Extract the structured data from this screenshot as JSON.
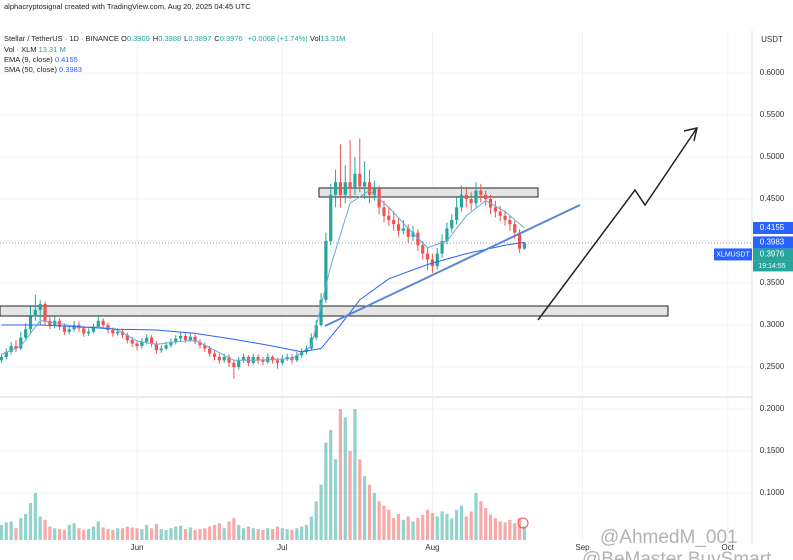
{
  "header": {
    "attribution": "alphacryptosignal created with TradingView.com, Aug 20, 2025 04:45 UTC",
    "symbol": "Stellar / TetherUS · 1D · BINANCE",
    "ohlc": [
      [
        "O",
        "0.3909"
      ],
      [
        "H",
        "0.3988"
      ],
      [
        "L",
        "0.3897"
      ],
      [
        "C",
        "0.3976"
      ]
    ],
    "change": "+0.0068 (+1.74%)",
    "vol_label": "Vol",
    "vol_value": "13.31M",
    "indicators": [
      {
        "name": "Vol · XLM",
        "value": "13.31 M"
      },
      {
        "name": "EMA (9, close)",
        "value": "0.4155"
      },
      {
        "name": "SMA (50, close)",
        "value": "0.3983"
      }
    ]
  },
  "axis_unit": "USDT",
  "price_tags": [
    {
      "value": 0.4155,
      "color": "#2962ff"
    },
    {
      "value": 0.3983,
      "color": "#2962ff"
    },
    {
      "value": 0.3976,
      "color": "#26a69a",
      "symbol": "XLMUSDT",
      "countdown": "19:14:55"
    }
  ],
  "watermarks": [
    "@AhmedM_001",
    "@BeMaster BuySmart"
  ],
  "chart_data": {
    "type": "candlestick",
    "up_color": "#26a69a",
    "down_color": "#ef5350",
    "xlim": [
      -0.3,
      155
    ],
    "ylim": [
      0.2167,
      0.6452
    ],
    "vol_ylim": [
      0.044,
      0.2107
    ],
    "xticks": [
      {
        "value": 28,
        "label": "Jun"
      },
      {
        "value": 58,
        "label": "Jul"
      },
      {
        "value": 89,
        "label": "Aug"
      },
      {
        "value": 120,
        "label": "Sep"
      },
      {
        "value": 150,
        "label": "Oct"
      }
    ],
    "yticks": [
      {
        "value": 0.25,
        "label": "0.2500"
      },
      {
        "value": 0.3,
        "label": "0.3000"
      },
      {
        "value": 0.35,
        "label": "0.3500"
      },
      {
        "value": 0.4,
        "label": "0.4000"
      },
      {
        "value": 0.45,
        "label": "0.4500"
      },
      {
        "value": 0.5,
        "label": "0.5000"
      },
      {
        "value": 0.55,
        "label": "0.5500"
      },
      {
        "value": 0.6,
        "label": "0.6000"
      }
    ],
    "vol_yticks": [
      {
        "value": 0.1,
        "label": "0.1000"
      },
      {
        "value": 0.15,
        "label": "0.1500"
      },
      {
        "value": 0.2,
        "label": "0.2000"
      }
    ],
    "grid": true,
    "candles": {
      "x": [
        0,
        1,
        2,
        3,
        4,
        5,
        6,
        7,
        8,
        9,
        10,
        11,
        12,
        13,
        14,
        15,
        16,
        17,
        18,
        19,
        20,
        21,
        22,
        23,
        24,
        25,
        26,
        27,
        28,
        29,
        30,
        31,
        32,
        33,
        34,
        35,
        36,
        37,
        38,
        39,
        40,
        41,
        42,
        43,
        44,
        45,
        46,
        47,
        48,
        49,
        50,
        51,
        52,
        53,
        54,
        55,
        56,
        57,
        58,
        59,
        60,
        61,
        62,
        63,
        64,
        65,
        66,
        67,
        68,
        69,
        70,
        71,
        72,
        73,
        74,
        75,
        76,
        77,
        78,
        79,
        80,
        81,
        82,
        83,
        84,
        85,
        86,
        87,
        88,
        89,
        90,
        91,
        92,
        93,
        94,
        95,
        96,
        97,
        98,
        99,
        100,
        101,
        102,
        103,
        104,
        105,
        106,
        107,
        108
      ],
      "ohlc": [
        [
          0.258,
          0.266,
          0.255,
          0.262
        ],
        [
          0.262,
          0.272,
          0.259,
          0.268
        ],
        [
          0.268,
          0.28,
          0.265,
          0.275
        ],
        [
          0.275,
          0.282,
          0.268,
          0.272
        ],
        [
          0.272,
          0.292,
          0.27,
          0.285
        ],
        [
          0.285,
          0.302,
          0.282,
          0.295
        ],
        [
          0.295,
          0.322,
          0.29,
          0.31
        ],
        [
          0.31,
          0.336,
          0.305,
          0.318
        ],
        [
          0.318,
          0.33,
          0.3,
          0.325
        ],
        [
          0.325,
          0.328,
          0.3,
          0.305
        ],
        [
          0.305,
          0.312,
          0.295,
          0.3
        ],
        [
          0.3,
          0.31,
          0.296,
          0.305
        ],
        [
          0.305,
          0.308,
          0.294,
          0.298
        ],
        [
          0.298,
          0.302,
          0.288,
          0.292
        ],
        [
          0.292,
          0.3,
          0.289,
          0.295
        ],
        [
          0.295,
          0.305,
          0.292,
          0.3
        ],
        [
          0.3,
          0.304,
          0.292,
          0.296
        ],
        [
          0.296,
          0.299,
          0.286,
          0.29
        ],
        [
          0.29,
          0.296,
          0.287,
          0.292
        ],
        [
          0.292,
          0.302,
          0.29,
          0.298
        ],
        [
          0.298,
          0.312,
          0.296,
          0.305
        ],
        [
          0.305,
          0.308,
          0.296,
          0.3
        ],
        [
          0.3,
          0.303,
          0.29,
          0.294
        ],
        [
          0.294,
          0.297,
          0.286,
          0.29
        ],
        [
          0.29,
          0.296,
          0.287,
          0.292
        ],
        [
          0.292,
          0.295,
          0.284,
          0.288
        ],
        [
          0.288,
          0.291,
          0.278,
          0.282
        ],
        [
          0.282,
          0.286,
          0.274,
          0.278
        ],
        [
          0.278,
          0.282,
          0.27,
          0.275
        ],
        [
          0.275,
          0.284,
          0.272,
          0.28
        ],
        [
          0.28,
          0.289,
          0.277,
          0.285
        ],
        [
          0.285,
          0.288,
          0.274,
          0.278
        ],
        [
          0.278,
          0.281,
          0.266,
          0.27
        ],
        [
          0.27,
          0.276,
          0.267,
          0.272
        ],
        [
          0.272,
          0.28,
          0.27,
          0.276
        ],
        [
          0.276,
          0.284,
          0.273,
          0.28
        ],
        [
          0.28,
          0.288,
          0.277,
          0.284
        ],
        [
          0.284,
          0.291,
          0.281,
          0.287
        ],
        [
          0.287,
          0.29,
          0.279,
          0.282
        ],
        [
          0.282,
          0.29,
          0.28,
          0.286
        ],
        [
          0.286,
          0.289,
          0.277,
          0.28
        ],
        [
          0.28,
          0.283,
          0.272,
          0.276
        ],
        [
          0.276,
          0.279,
          0.268,
          0.272
        ],
        [
          0.272,
          0.275,
          0.262,
          0.266
        ],
        [
          0.266,
          0.27,
          0.258,
          0.262
        ],
        [
          0.262,
          0.266,
          0.254,
          0.258
        ],
        [
          0.258,
          0.266,
          0.255,
          0.262
        ],
        [
          0.262,
          0.265,
          0.25,
          0.255
        ],
        [
          0.255,
          0.258,
          0.236,
          0.25
        ],
        [
          0.25,
          0.262,
          0.247,
          0.258
        ],
        [
          0.258,
          0.266,
          0.255,
          0.262
        ],
        [
          0.262,
          0.264,
          0.251,
          0.255
        ],
        [
          0.255,
          0.266,
          0.253,
          0.262
        ],
        [
          0.262,
          0.265,
          0.254,
          0.258
        ],
        [
          0.258,
          0.262,
          0.252,
          0.256
        ],
        [
          0.256,
          0.266,
          0.254,
          0.262
        ],
        [
          0.262,
          0.264,
          0.254,
          0.258
        ],
        [
          0.258,
          0.261,
          0.248,
          0.255
        ],
        [
          0.255,
          0.264,
          0.252,
          0.26
        ],
        [
          0.26,
          0.266,
          0.257,
          0.262
        ],
        [
          0.262,
          0.265,
          0.254,
          0.258
        ],
        [
          0.258,
          0.268,
          0.256,
          0.264
        ],
        [
          0.264,
          0.272,
          0.261,
          0.268
        ],
        [
          0.268,
          0.276,
          0.265,
          0.272
        ],
        [
          0.272,
          0.29,
          0.27,
          0.285
        ],
        [
          0.285,
          0.306,
          0.282,
          0.3
        ],
        [
          0.3,
          0.338,
          0.298,
          0.33
        ],
        [
          0.33,
          0.41,
          0.326,
          0.4
        ],
        [
          0.4,
          0.468,
          0.395,
          0.455
        ],
        [
          0.455,
          0.485,
          0.44,
          0.47
        ],
        [
          0.47,
          0.515,
          0.44,
          0.455
        ],
        [
          0.455,
          0.49,
          0.445,
          0.47
        ],
        [
          0.47,
          0.52,
          0.45,
          0.462
        ],
        [
          0.462,
          0.5,
          0.455,
          0.48
        ],
        [
          0.48,
          0.522,
          0.458,
          0.465
        ],
        [
          0.465,
          0.495,
          0.45,
          0.47
        ],
        [
          0.47,
          0.485,
          0.445,
          0.455
        ],
        [
          0.455,
          0.472,
          0.448,
          0.462
        ],
        [
          0.462,
          0.466,
          0.432,
          0.44
        ],
        [
          0.44,
          0.448,
          0.422,
          0.43
        ],
        [
          0.43,
          0.44,
          0.418,
          0.425
        ],
        [
          0.425,
          0.435,
          0.412,
          0.42
        ],
        [
          0.42,
          0.428,
          0.405,
          0.412
        ],
        [
          0.412,
          0.425,
          0.408,
          0.415
        ],
        [
          0.415,
          0.42,
          0.398,
          0.405
        ],
        [
          0.405,
          0.418,
          0.4,
          0.41
        ],
        [
          0.41,
          0.414,
          0.388,
          0.395
        ],
        [
          0.395,
          0.4,
          0.378,
          0.385
        ],
        [
          0.385,
          0.392,
          0.365,
          0.378
        ],
        [
          0.378,
          0.385,
          0.362,
          0.37
        ],
        [
          0.37,
          0.392,
          0.366,
          0.385
        ],
        [
          0.385,
          0.408,
          0.38,
          0.4
        ],
        [
          0.4,
          0.422,
          0.396,
          0.415
        ],
        [
          0.415,
          0.432,
          0.41,
          0.425
        ],
        [
          0.425,
          0.452,
          0.42,
          0.44
        ],
        [
          0.44,
          0.466,
          0.435,
          0.455
        ],
        [
          0.455,
          0.462,
          0.44,
          0.45
        ],
        [
          0.45,
          0.458,
          0.436,
          0.445
        ],
        [
          0.445,
          0.47,
          0.44,
          0.46
        ],
        [
          0.46,
          0.468,
          0.446,
          0.455
        ],
        [
          0.455,
          0.46,
          0.442,
          0.45
        ],
        [
          0.45,
          0.455,
          0.432,
          0.44
        ],
        [
          0.44,
          0.448,
          0.428,
          0.435
        ],
        [
          0.435,
          0.442,
          0.424,
          0.43
        ],
        [
          0.43,
          0.436,
          0.418,
          0.425
        ],
        [
          0.425,
          0.43,
          0.412,
          0.42
        ],
        [
          0.42,
          0.424,
          0.402,
          0.41
        ],
        [
          0.41,
          0.414,
          0.386,
          0.3909
        ],
        [
          0.3909,
          0.3988,
          0.3897,
          0.3976
        ]
      ],
      "volume": [
        0.062,
        0.065,
        0.066,
        0.058,
        0.07,
        0.075,
        0.088,
        0.1,
        0.072,
        0.068,
        0.06,
        0.058,
        0.057,
        0.056,
        0.062,
        0.064,
        0.058,
        0.056,
        0.057,
        0.06,
        0.066,
        0.059,
        0.057,
        0.056,
        0.058,
        0.058,
        0.06,
        0.059,
        0.058,
        0.057,
        0.062,
        0.058,
        0.063,
        0.057,
        0.056,
        0.058,
        0.06,
        0.061,
        0.057,
        0.059,
        0.056,
        0.057,
        0.058,
        0.06,
        0.062,
        0.064,
        0.058,
        0.066,
        0.07,
        0.062,
        0.058,
        0.06,
        0.058,
        0.057,
        0.056,
        0.058,
        0.057,
        0.06,
        0.058,
        0.057,
        0.056,
        0.058,
        0.06,
        0.062,
        0.072,
        0.09,
        0.11,
        0.16,
        0.175,
        0.14,
        0.2,
        0.19,
        0.15,
        0.2,
        0.14,
        0.12,
        0.11,
        0.1,
        0.09,
        0.085,
        0.08,
        0.07,
        0.075,
        0.068,
        0.072,
        0.066,
        0.07,
        0.074,
        0.08,
        0.076,
        0.072,
        0.078,
        0.075,
        0.07,
        0.08,
        0.085,
        0.072,
        0.078,
        0.1,
        0.09,
        0.082,
        0.074,
        0.07,
        0.066,
        0.065,
        0.068,
        0.064,
        0.07,
        0.06
      ]
    },
    "series": [
      {
        "name": "EMA",
        "color": "#6fa8dc",
        "x": [
          0,
          4,
          8,
          12,
          16,
          20,
          24,
          28,
          32,
          36,
          40,
          44,
          48,
          52,
          56,
          60,
          64,
          68,
          72,
          76,
          80,
          84,
          88,
          92,
          96,
          100,
          104,
          108
        ],
        "values": [
          0.265,
          0.275,
          0.305,
          0.302,
          0.297,
          0.298,
          0.294,
          0.281,
          0.277,
          0.28,
          0.282,
          0.27,
          0.258,
          0.258,
          0.259,
          0.26,
          0.275,
          0.37,
          0.445,
          0.46,
          0.44,
          0.415,
          0.392,
          0.4,
          0.43,
          0.448,
          0.435,
          0.4155
        ]
      },
      {
        "name": "SMA",
        "color": "#2962ff",
        "x": [
          0,
          8,
          16,
          24,
          32,
          40,
          48,
          56,
          62,
          66,
          70,
          74,
          80,
          88,
          96,
          104,
          108
        ],
        "values": [
          0.3,
          0.3,
          0.298,
          0.295,
          0.294,
          0.29,
          0.283,
          0.275,
          0.268,
          0.272,
          0.3,
          0.33,
          0.355,
          0.372,
          0.385,
          0.395,
          0.3983
        ]
      }
    ]
  }
}
